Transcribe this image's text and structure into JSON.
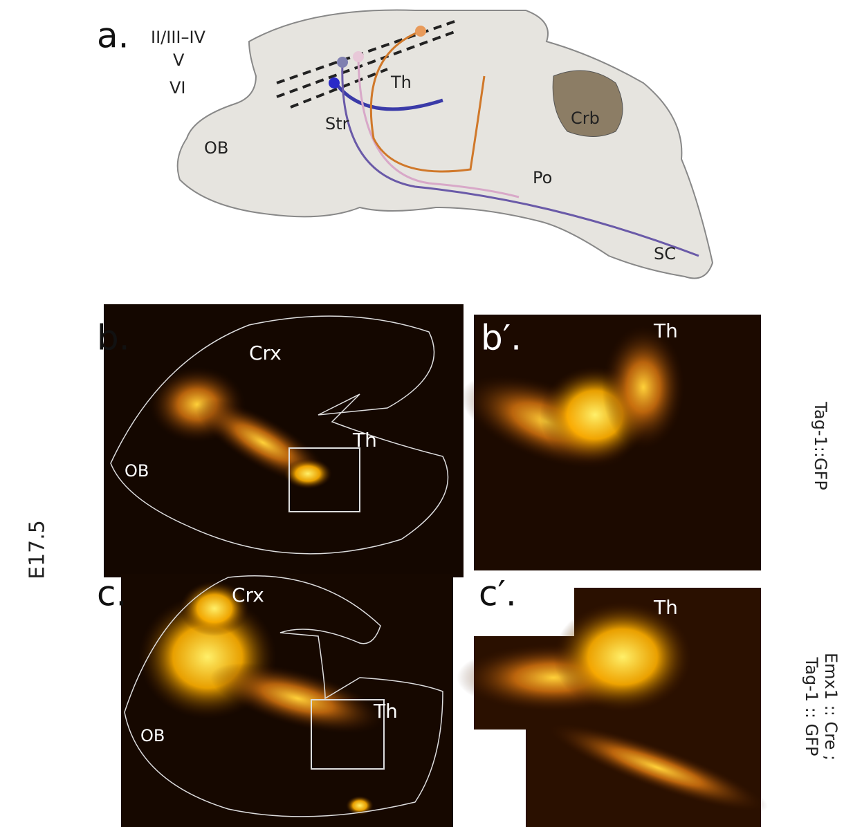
{
  "panel_a": {
    "label": "a.",
    "layers": [
      "II/III–IV",
      "V",
      "VI"
    ],
    "regions": [
      "Th",
      "Str",
      "OB",
      "Crb",
      "Po",
      "SC"
    ]
  },
  "panel_b": {
    "label": "b.",
    "regions": [
      "Crx",
      "Th",
      "OB"
    ]
  },
  "panel_b_prime": {
    "label": "b′.",
    "region": "Th"
  },
  "row_b_label": "Tag-1::GFP",
  "age": "E17.5",
  "panel_c": {
    "label": "c.",
    "regions": [
      "Crx",
      "Th",
      "OB"
    ]
  },
  "panel_c_prime": {
    "label": "c′.",
    "region": "Th"
  },
  "row_c_label": [
    "Emx1 :: Cre ;",
    "Tag-1 :: GFP"
  ]
}
